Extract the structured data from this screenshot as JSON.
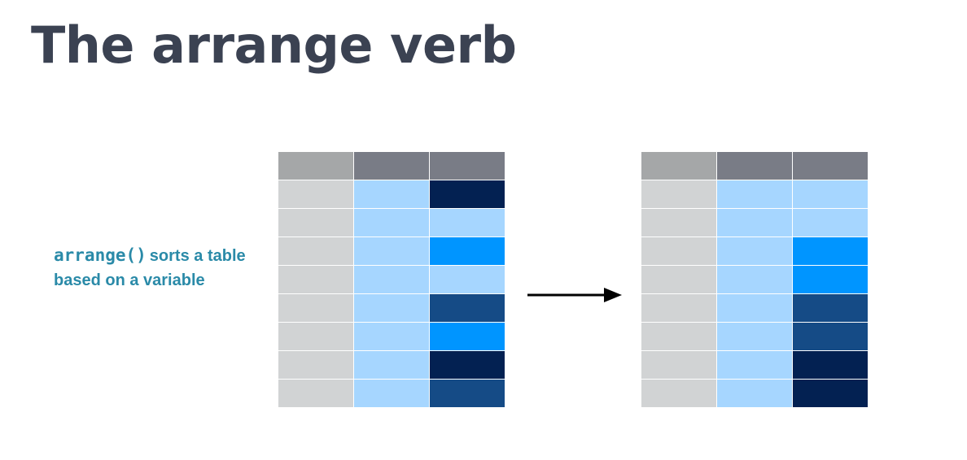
{
  "title": "The arrange verb",
  "caption": {
    "code": "arrange()",
    "text": "sorts a table based on a variable"
  },
  "colors": {
    "header_id": "#a5a7a8",
    "header_var": "#797c86",
    "id_cell": "#d1d3d4",
    "var_cell": "#a6d6ff",
    "shade_light": "#a6d6ff",
    "shade_bright": "#0095ff",
    "shade_mid": "#154b86",
    "shade_dark": "#032152"
  },
  "tables": {
    "before": [
      "dark",
      "light",
      "bright",
      "light",
      "mid",
      "bright",
      "dark",
      "mid"
    ],
    "after": [
      "light",
      "light",
      "bright",
      "bright",
      "mid",
      "mid",
      "dark",
      "dark"
    ]
  }
}
